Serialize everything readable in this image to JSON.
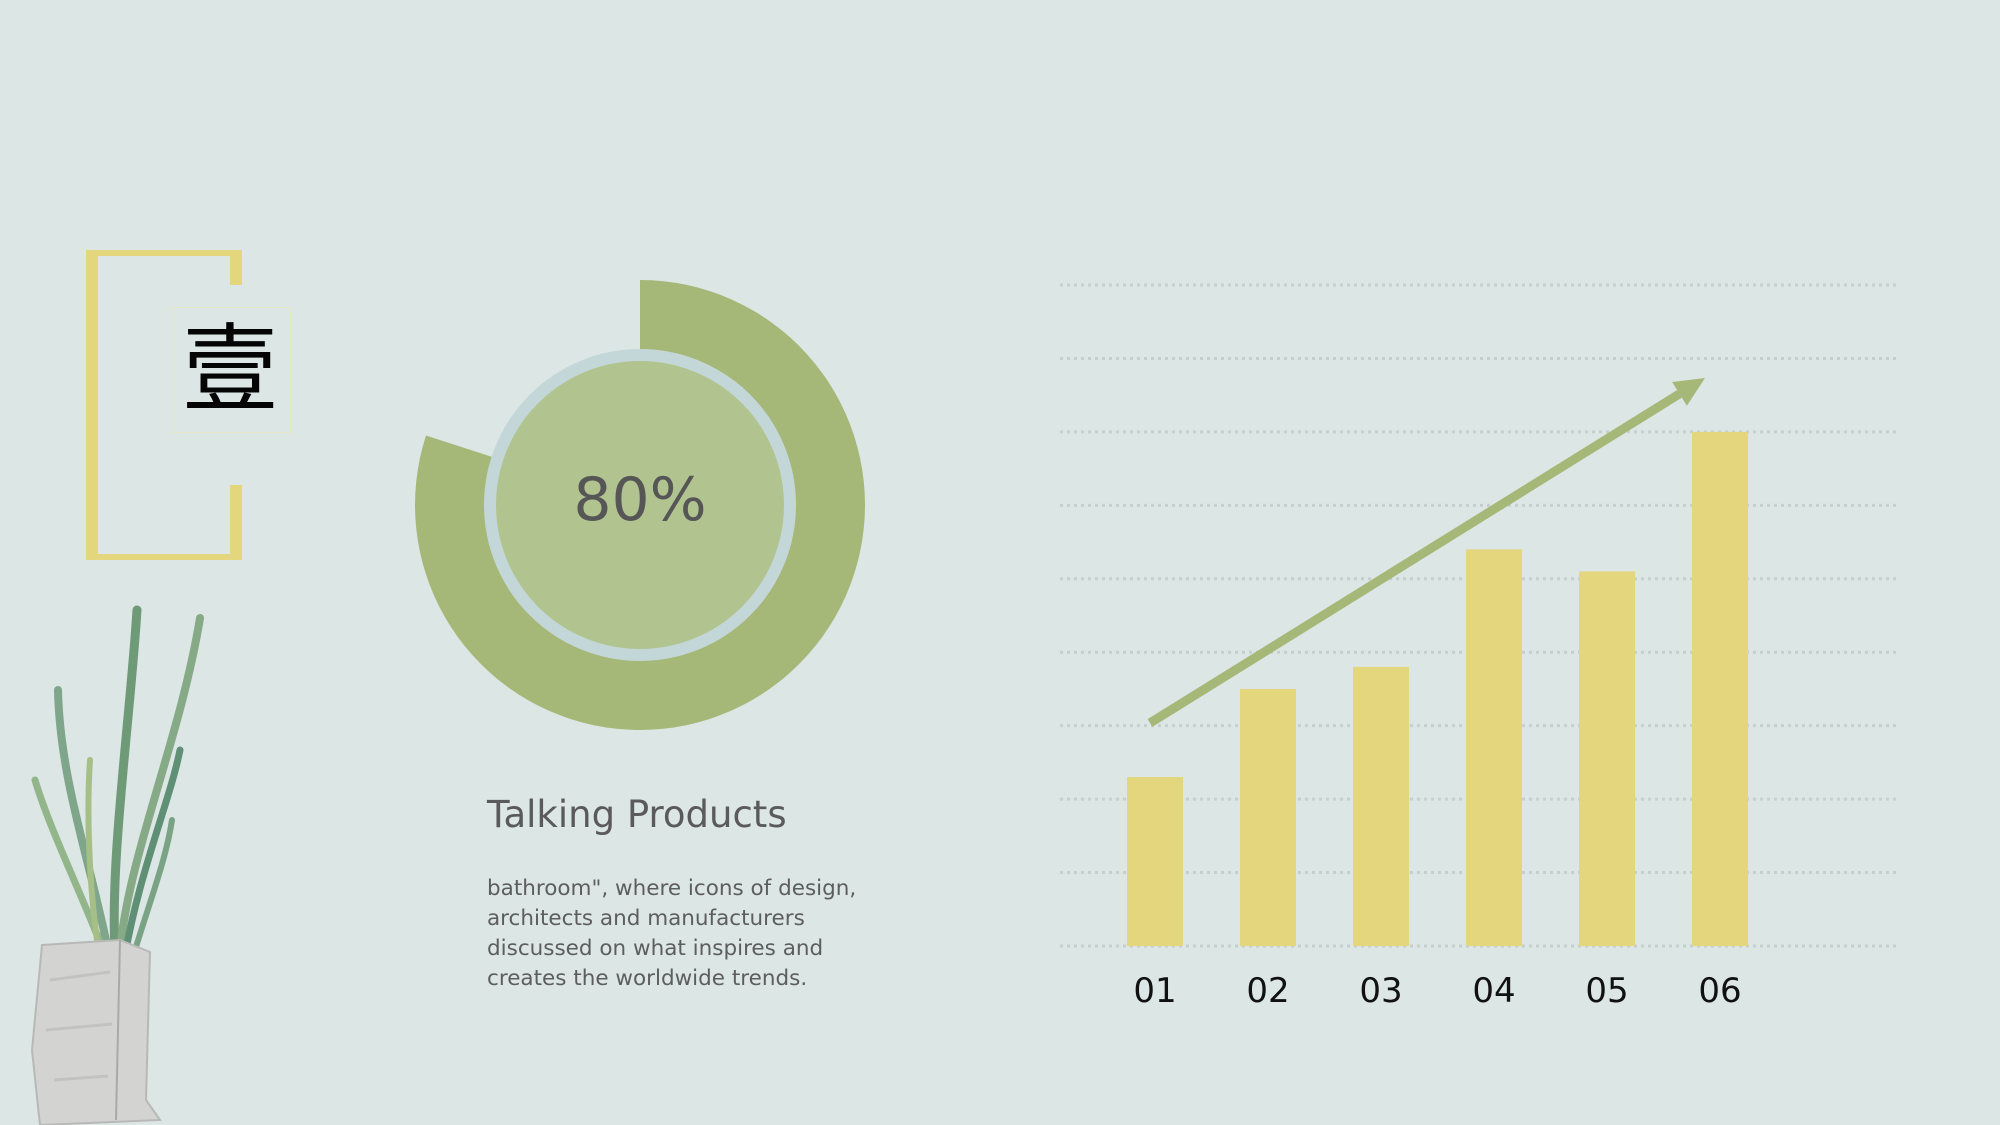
{
  "section_badge": {
    "glyph": "壹"
  },
  "donut": {
    "percent_label": "80%",
    "value": 0.8
  },
  "text_block": {
    "title": "Talking Products",
    "body": "bathroom\", where icons of design, architects and manufacturers discussed on what inspires and creates the worldwide trends."
  },
  "colors": {
    "background": "#dbe6e5",
    "accent_yellow": "#e4d67c",
    "accent_green": "#a6b878",
    "inner_green": "#b1c490",
    "ring": "#c4d7d8",
    "grid": "#c6cfcd"
  },
  "icons": [
    "trend-arrow-icon",
    "plant-illustration"
  ],
  "chart_data": {
    "type": "bar",
    "categories": [
      "01",
      "02",
      "03",
      "04",
      "05",
      "06"
    ],
    "values": [
      2.3,
      3.5,
      3.8,
      5.4,
      5.1,
      7.0
    ],
    "ylim": [
      0,
      9
    ],
    "gridlines": 10,
    "grid": true,
    "trend_arrow": true
  }
}
